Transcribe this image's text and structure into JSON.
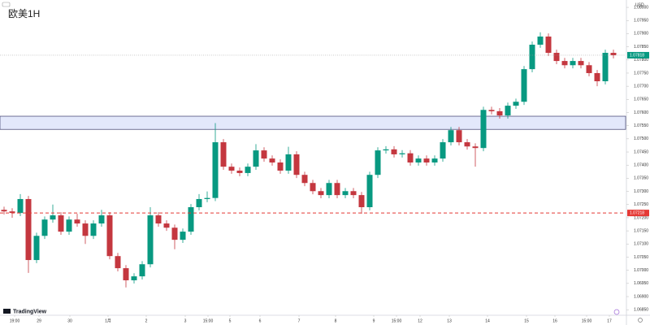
{
  "chart_data": {
    "type": "candlestick",
    "title": "欧美1H",
    "currency": "USD",
    "branding": "TradingView",
    "up_color": "#089981",
    "down_color": "#c4373f",
    "grid": false,
    "ylim": [
      1.06829,
      1.08028
    ],
    "yticks": [
      {
        "value": 1.0685,
        "label": "1.06850"
      },
      {
        "value": 1.069,
        "label": "1.06900"
      },
      {
        "value": 1.0695,
        "label": "1.06950"
      },
      {
        "value": 1.07,
        "label": "1.07000"
      },
      {
        "value": 1.0705,
        "label": "1.07050"
      },
      {
        "value": 1.071,
        "label": "1.07100"
      },
      {
        "value": 1.0715,
        "label": "1.07150"
      },
      {
        "value": 1.072,
        "label": "1.07200"
      },
      {
        "value": 1.0725,
        "label": "1.07250"
      },
      {
        "value": 1.073,
        "label": "1.07300"
      },
      {
        "value": 1.0735,
        "label": "1.07350"
      },
      {
        "value": 1.074,
        "label": "1.07400"
      },
      {
        "value": 1.0745,
        "label": "1.07450"
      },
      {
        "value": 1.075,
        "label": "1.07500"
      },
      {
        "value": 1.0755,
        "label": "1.07550"
      },
      {
        "value": 1.076,
        "label": "1.07600"
      },
      {
        "value": 1.0765,
        "label": "1.07650"
      },
      {
        "value": 1.077,
        "label": "1.07700"
      },
      {
        "value": 1.0775,
        "label": "1.07750"
      },
      {
        "value": 1.078,
        "label": "1.07800"
      },
      {
        "value": 1.0785,
        "label": "1.07850"
      },
      {
        "value": 1.079,
        "label": "1.07900"
      },
      {
        "value": 1.0795,
        "label": "1.07950"
      },
      {
        "value": 1.08,
        "label": "1.08000"
      }
    ],
    "xlim": [
      -0.5,
      76.5
    ],
    "xticks": [
      {
        "value": 1.3,
        "label": "19:00"
      },
      {
        "value": 4.3,
        "label": "29"
      },
      {
        "value": 8.1,
        "label": "30"
      },
      {
        "value": 12.8,
        "label": "1月"
      },
      {
        "value": 17.5,
        "label": "2"
      },
      {
        "value": 22.3,
        "label": "3"
      },
      {
        "value": 25.1,
        "label": "15:00"
      },
      {
        "value": 27.8,
        "label": "5"
      },
      {
        "value": 31.5,
        "label": "6"
      },
      {
        "value": 36.3,
        "label": "7"
      },
      {
        "value": 40.8,
        "label": "8"
      },
      {
        "value": 45.5,
        "label": "9"
      },
      {
        "value": 48.3,
        "label": "15:00"
      },
      {
        "value": 51.2,
        "label": "12"
      },
      {
        "value": 54.8,
        "label": "13"
      },
      {
        "value": 59.5,
        "label": "14"
      },
      {
        "value": 64.3,
        "label": "15"
      },
      {
        "value": 67.8,
        "label": "16"
      },
      {
        "value": 71.7,
        "label": "15:00"
      },
      {
        "value": 74.5,
        "label": "17"
      }
    ],
    "open": [
      1.0723,
      1.07224,
      1.07218,
      1.07271,
      1.07039,
      1.07131,
      1.07193,
      1.07209,
      1.07147,
      1.07193,
      1.07178,
      1.07131,
      1.07178,
      1.07209,
      1.07054,
      1.07008,
      1.06962,
      1.06977,
      1.07023,
      1.07209,
      1.07178,
      1.07162,
      1.07116,
      1.07147,
      1.0724,
      1.07271,
      1.07275,
      1.07487,
      1.07394,
      1.07379,
      1.0737,
      1.07394,
      1.07456,
      1.07425,
      1.0741,
      1.07379,
      1.07441,
      1.07363,
      1.07332,
      1.07301,
      1.07286,
      1.07332,
      1.07286,
      1.07301,
      1.07286,
      1.0724,
      1.07363,
      1.07456,
      1.0746,
      1.07441,
      1.07445,
      1.0741,
      1.07425,
      1.0741,
      1.07425,
      1.07487,
      1.07533,
      1.07487,
      1.07471,
      1.07465,
      1.0761,
      1.07605,
      1.07589,
      1.07626,
      1.07641,
      1.07765,
      1.07858,
      1.07889,
      1.07827,
      1.07796,
      1.0778,
      1.07796,
      1.0778,
      1.0775,
      1.07719,
      1.07827
    ],
    "high": [
      1.07242,
      1.07236,
      1.0729,
      1.07283,
      1.07143,
      1.07205,
      1.0725,
      1.07221,
      1.07205,
      1.07215,
      1.0719,
      1.0719,
      1.0723,
      1.07221,
      1.07066,
      1.0702,
      1.06989,
      1.07035,
      1.0724,
      1.07221,
      1.0719,
      1.07174,
      1.07159,
      1.07252,
      1.0729,
      1.073,
      1.0756,
      1.07499,
      1.07406,
      1.07391,
      1.07406,
      1.0748,
      1.07468,
      1.07437,
      1.07422,
      1.0747,
      1.07453,
      1.07375,
      1.07344,
      1.07313,
      1.07344,
      1.07344,
      1.07313,
      1.07313,
      1.07298,
      1.07375,
      1.07468,
      1.07472,
      1.07472,
      1.07457,
      1.07457,
      1.07437,
      1.07437,
      1.07437,
      1.07499,
      1.07545,
      1.07545,
      1.07499,
      1.07483,
      1.07622,
      1.07622,
      1.07617,
      1.07638,
      1.07653,
      1.07777,
      1.0787,
      1.07905,
      1.07901,
      1.07839,
      1.07808,
      1.07808,
      1.07808,
      1.07792,
      1.07762,
      1.07839,
      1.07839
    ],
    "low": [
      1.07212,
      1.072,
      1.07206,
      1.0699,
      1.07027,
      1.07119,
      1.07181,
      1.07135,
      1.07135,
      1.07166,
      1.071,
      1.07119,
      1.07166,
      1.07042,
      1.06996,
      1.06935,
      1.0695,
      1.06965,
      1.07011,
      1.07166,
      1.0715,
      1.0708,
      1.07104,
      1.07135,
      1.07228,
      1.07259,
      1.07263,
      1.07382,
      1.07367,
      1.07358,
      1.07358,
      1.07382,
      1.07413,
      1.07398,
      1.07367,
      1.07367,
      1.07351,
      1.0732,
      1.07289,
      1.07274,
      1.07274,
      1.07274,
      1.07274,
      1.07274,
      1.07215,
      1.07228,
      1.07351,
      1.07444,
      1.07429,
      1.07429,
      1.07398,
      1.07398,
      1.07398,
      1.07398,
      1.07413,
      1.07475,
      1.07475,
      1.07459,
      1.07394,
      1.07453,
      1.07593,
      1.07577,
      1.07577,
      1.07614,
      1.07629,
      1.07753,
      1.07846,
      1.07815,
      1.07784,
      1.07768,
      1.07768,
      1.07768,
      1.07738,
      1.077,
      1.07707,
      1.07806
    ],
    "close": [
      1.07224,
      1.07218,
      1.07271,
      1.07039,
      1.07131,
      1.07193,
      1.07209,
      1.07147,
      1.07193,
      1.07178,
      1.07131,
      1.07178,
      1.07209,
      1.07054,
      1.07008,
      1.06962,
      1.06977,
      1.07023,
      1.07209,
      1.07178,
      1.07162,
      1.07116,
      1.07147,
      1.0724,
      1.07271,
      1.07275,
      1.07487,
      1.07394,
      1.07379,
      1.0737,
      1.07394,
      1.07456,
      1.07425,
      1.0741,
      1.07379,
      1.07441,
      1.07363,
      1.07332,
      1.07301,
      1.07286,
      1.07332,
      1.07286,
      1.07301,
      1.07286,
      1.0724,
      1.07363,
      1.07456,
      1.0746,
      1.07441,
      1.07445,
      1.0741,
      1.07425,
      1.0741,
      1.07425,
      1.07487,
      1.07533,
      1.07487,
      1.07471,
      1.07465,
      1.0761,
      1.07605,
      1.07589,
      1.07626,
      1.07641,
      1.07765,
      1.07858,
      1.07889,
      1.07827,
      1.07796,
      1.0778,
      1.07796,
      1.0778,
      1.0775,
      1.07719,
      1.07827,
      1.07818
    ],
    "zone": [
      1.07536,
      1.07586
    ],
    "zone_color": "#e3e8fb",
    "hline": {
      "value": 1.07218,
      "color": "#e53935"
    }
  }
}
